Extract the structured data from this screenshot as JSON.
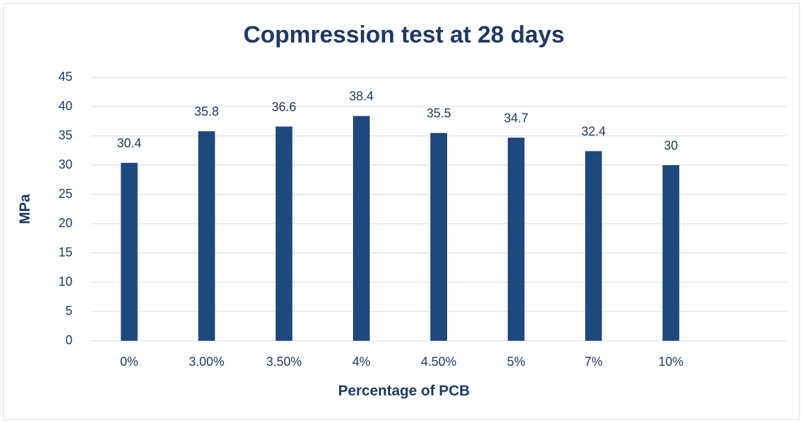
{
  "chart_data": {
    "type": "bar",
    "title": "Copmression test at 28 days",
    "x_label": "Percentage of PCB",
    "y_label": "MPa",
    "categories": [
      "0%",
      "3.00%",
      "3.50%",
      "4%",
      "4.50%",
      "5%",
      "7%",
      "10%",
      null
    ],
    "values": [
      30.4,
      35.8,
      36.6,
      38.4,
      35.5,
      34.7,
      32.4,
      30,
      null
    ],
    "color": "#1f487c",
    "ylim": [
      0,
      45
    ],
    "yticks": [
      0,
      5,
      10,
      15,
      20,
      25,
      30,
      35,
      40,
      45
    ],
    "grid": true
  }
}
